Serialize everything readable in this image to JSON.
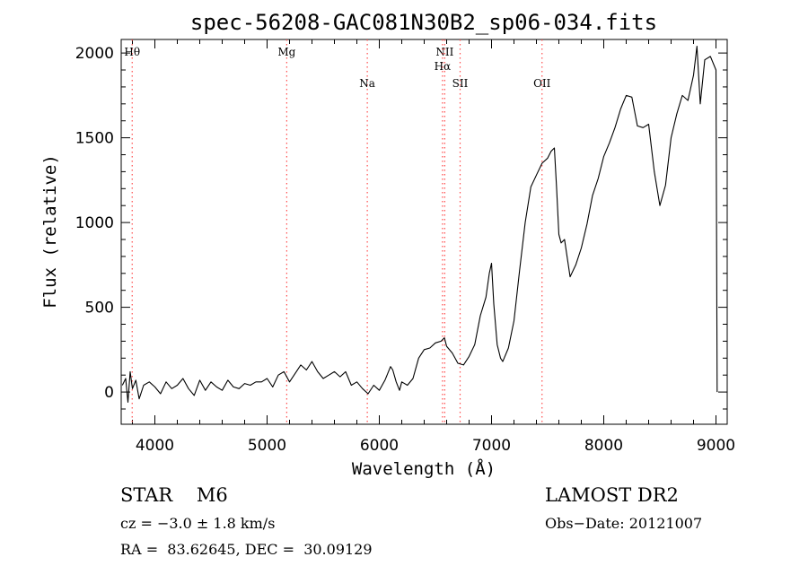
{
  "chart_data": {
    "type": "line",
    "title": "spec-56208-GAC081N30B2_sp06-034.fits",
    "xlabel": "Wavelength (Å)",
    "ylabel": "Flux (relative)",
    "xlim": [
      3700,
      9100
    ],
    "ylim": [
      -190,
      2080
    ],
    "xticks": [
      4000,
      5000,
      6000,
      7000,
      8000,
      9000
    ],
    "yticks": [
      0,
      500,
      1000,
      1500,
      2000
    ],
    "grid": false,
    "line_color": "#000000",
    "marker_color": "#ff4d4d",
    "lines": [
      {
        "label": "Hθ",
        "x": 3798,
        "row": 0
      },
      {
        "label": "Mg",
        "x": 5175,
        "row": 0
      },
      {
        "label": "Na",
        "x": 5893,
        "row": 2
      },
      {
        "label": "NII",
        "x": 6583,
        "row": 0
      },
      {
        "label": "Hα",
        "x": 6563,
        "row": 1
      },
      {
        "label": "SII",
        "x": 6720,
        "row": 2
      },
      {
        "label": "OII",
        "x": 7450,
        "row": 2
      }
    ],
    "series": [
      {
        "x": [
          3710,
          3740,
          3760,
          3780,
          3800,
          3830,
          3860,
          3900,
          3950,
          4000,
          4050,
          4100,
          4150,
          4200,
          4250,
          4300,
          4350,
          4400,
          4450,
          4500,
          4550,
          4600,
          4650,
          4700,
          4750,
          4800,
          4850,
          4900,
          4950,
          5000,
          5050,
          5100,
          5150,
          5200,
          5250,
          5300,
          5350,
          5400,
          5450,
          5500,
          5550,
          5600,
          5650,
          5700,
          5750,
          5800,
          5850,
          5900,
          5950,
          6000,
          6050,
          6100,
          6120,
          6150,
          6180,
          6200,
          6250,
          6300,
          6350,
          6400,
          6450,
          6500,
          6550,
          6580,
          6600,
          6650,
          6700,
          6750,
          6800,
          6850,
          6900,
          6950,
          6980,
          7000,
          7020,
          7050,
          7080,
          7100,
          7150,
          7200,
          7250,
          7300,
          7350,
          7400,
          7450,
          7500,
          7530,
          7560,
          7580,
          7600,
          7620,
          7650,
          7700,
          7750,
          7800,
          7850,
          7900,
          7950,
          8000,
          8050,
          8100,
          8150,
          8200,
          8250,
          8300,
          8350,
          8400,
          8450,
          8500,
          8550,
          8600,
          8650,
          8700,
          8750,
          8800,
          8830,
          8860,
          8900,
          8950,
          9000,
          9010
        ],
        "y": [
          40,
          80,
          -60,
          120,
          20,
          70,
          -40,
          40,
          60,
          30,
          -10,
          60,
          20,
          40,
          80,
          20,
          -20,
          70,
          10,
          60,
          30,
          10,
          70,
          30,
          20,
          50,
          40,
          60,
          60,
          80,
          30,
          100,
          120,
          60,
          110,
          160,
          130,
          180,
          120,
          80,
          100,
          120,
          90,
          120,
          40,
          60,
          20,
          -10,
          40,
          10,
          70,
          150,
          130,
          60,
          10,
          60,
          40,
          80,
          200,
          250,
          260,
          290,
          300,
          320,
          270,
          230,
          170,
          160,
          210,
          280,
          450,
          560,
          700,
          760,
          520,
          280,
          200,
          180,
          260,
          420,
          720,
          1000,
          1210,
          1280,
          1350,
          1380,
          1420,
          1440,
          1200,
          930,
          880,
          900,
          680,
          750,
          850,
          990,
          1160,
          1260,
          1390,
          1470,
          1560,
          1670,
          1750,
          1740,
          1570,
          1560,
          1580,
          1300,
          1100,
          1220,
          1500,
          1640,
          1750,
          1720,
          1870,
          2040,
          1700,
          1960,
          1980,
          1900,
          0
        ]
      }
    ]
  },
  "footer": {
    "object_type": "STAR    M6",
    "survey": "LAMOST DR2",
    "cz": "cz = −3.0 ± 1.8 km/s",
    "obs_date": "Obs−Date: 20121007",
    "coords": "RA =  83.62645, DEC =  30.09129"
  }
}
